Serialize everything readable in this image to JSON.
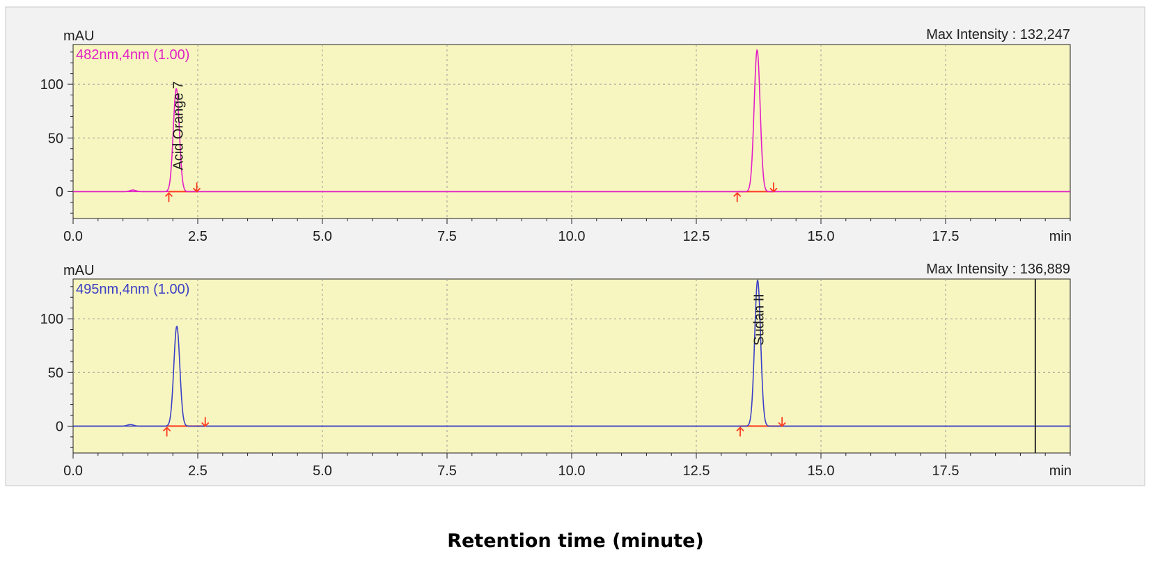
{
  "figure": {
    "xlabel": "Retention time (minute)"
  },
  "colors": {
    "plot_background": "#f8f6c0",
    "grid": "#9a9a9a",
    "trace_482": "#e21ec8",
    "trace_495": "#3a3fc6",
    "baseline_marker": "#ff3b1f"
  },
  "chart_data": [
    {
      "type": "line",
      "y_unit_label": "mAU",
      "x_unit_label": "min",
      "header_right": "Max Intensity : 132,247",
      "ylim": [
        -25,
        137
      ],
      "xlim": [
        0,
        20
      ],
      "yticks": [
        0,
        50,
        100
      ],
      "xticks": [
        0.0,
        2.5,
        5.0,
        7.5,
        10.0,
        12.5,
        15.0,
        17.5
      ],
      "grid": true,
      "series": [
        {
          "name": "482nm,4nm (1.00)",
          "color": "#e21ec8",
          "peaks": [
            {
              "rt": 1.2,
              "height": 1.5,
              "width": 0.06
            },
            {
              "rt": 2.07,
              "height": 96,
              "width": 0.06
            },
            {
              "rt": 13.72,
              "height": 132,
              "width": 0.06
            }
          ]
        }
      ],
      "annotations": [
        {
          "text": "Acid Orange 7",
          "x": 2.2,
          "y": 20
        }
      ],
      "integration_marks": [
        {
          "start": 1.92,
          "end": 2.48
        },
        {
          "start": 13.32,
          "end": 14.05
        }
      ]
    },
    {
      "type": "line",
      "y_unit_label": "mAU",
      "x_unit_label": "min",
      "header_right": "Max Intensity : 136,889",
      "ylim": [
        -25,
        137
      ],
      "xlim": [
        0,
        20
      ],
      "yticks": [
        0,
        50,
        100
      ],
      "xticks": [
        0.0,
        2.5,
        5.0,
        7.5,
        10.0,
        12.5,
        15.0,
        17.5
      ],
      "grid": true,
      "end_marker_x": 19.3,
      "series": [
        {
          "name": "495nm,4nm (1.00)",
          "color": "#3a3fc6",
          "peaks": [
            {
              "rt": 1.15,
              "height": 1.5,
              "width": 0.06
            },
            {
              "rt": 2.08,
              "height": 93,
              "width": 0.06
            },
            {
              "rt": 13.73,
              "height": 136,
              "width": 0.06
            }
          ]
        }
      ],
      "annotations": [
        {
          "text": "Sudan II",
          "x": 13.85,
          "y": 75
        }
      ],
      "integration_marks": [
        {
          "start": 1.88,
          "end": 2.65
        },
        {
          "start": 13.38,
          "end": 14.22
        }
      ]
    }
  ]
}
